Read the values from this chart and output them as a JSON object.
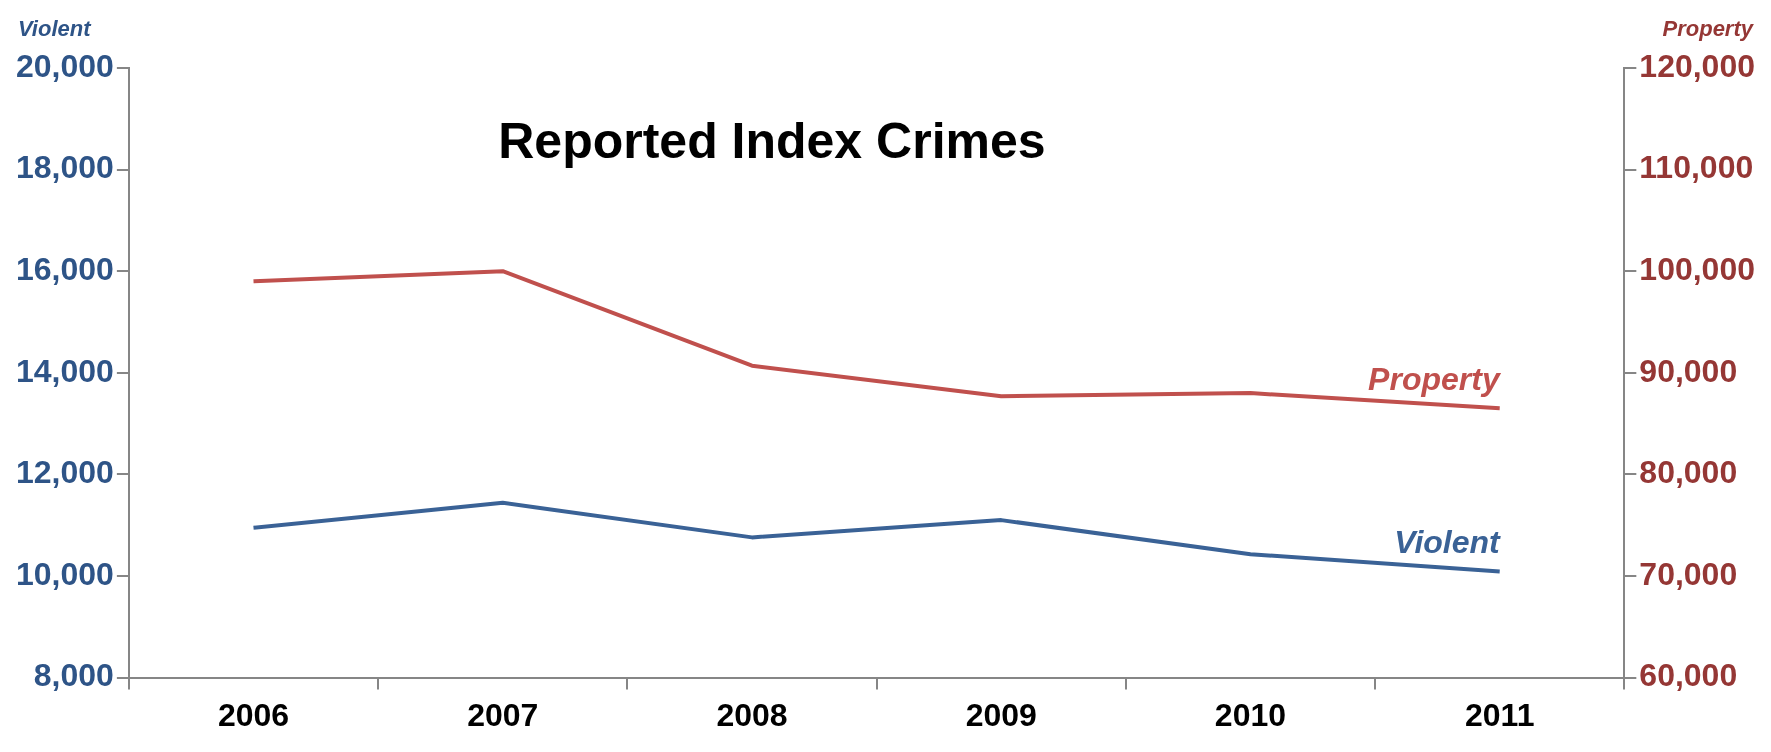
{
  "chart_data": {
    "type": "line",
    "title": "Reported Index Crimes",
    "ylabel": "Violent",
    "y2label": "Property",
    "categories": [
      "2006",
      "2007",
      "2008",
      "2009",
      "2010",
      "2011"
    ],
    "series": [
      {
        "name": "Property",
        "color": "#c0504d",
        "axis": "y2",
        "values": [
          99000,
          100000,
          90700,
          87700,
          88000,
          86500
        ]
      },
      {
        "name": "Violent",
        "color": "#3a6296",
        "values": [
          10950,
          11440,
          10760,
          11100,
          10430,
          10090
        ]
      }
    ],
    "ylim": [
      8000,
      20000
    ],
    "yticks": [
      {
        "value": 8000,
        "label": "8,000"
      },
      {
        "value": 10000,
        "label": "10,000"
      },
      {
        "value": 12000,
        "label": "12,000"
      },
      {
        "value": 14000,
        "label": "14,000"
      },
      {
        "value": 16000,
        "label": "16,000"
      },
      {
        "value": 18000,
        "label": "18,000"
      },
      {
        "value": 20000,
        "label": "20,000"
      }
    ],
    "y2lim": [
      60000,
      120000
    ],
    "y2ticks": [
      {
        "value": 60000,
        "label": "60,000"
      },
      {
        "value": 70000,
        "label": "70,000"
      },
      {
        "value": 80000,
        "label": "80,000"
      },
      {
        "value": 90000,
        "label": "90,000"
      },
      {
        "value": 100000,
        "label": "100,000"
      },
      {
        "value": 110000,
        "label": "110,000"
      },
      {
        "value": 120000,
        "label": "120,000"
      }
    ],
    "legend": false,
    "marker": "none"
  }
}
